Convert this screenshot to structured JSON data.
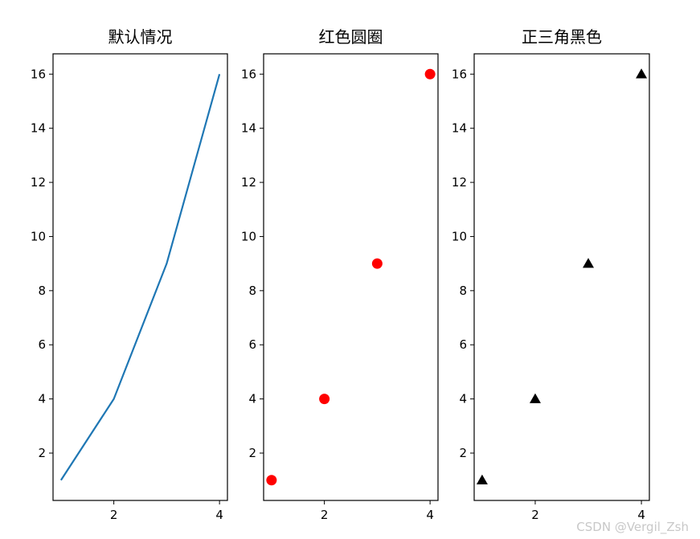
{
  "watermark": "CSDN @Vergil_Zsh",
  "chart_data": [
    {
      "type": "line",
      "title": "默认情况",
      "x": [
        1,
        2,
        3,
        4
      ],
      "y": [
        1,
        4,
        9,
        16
      ],
      "color": "#1f77b4",
      "xlim": [
        0.85,
        4.15
      ],
      "ylim": [
        0.25,
        16.75
      ],
      "xticks": [
        2,
        4
      ],
      "yticks": [
        2,
        4,
        6,
        8,
        10,
        12,
        14,
        16
      ],
      "grid": false
    },
    {
      "type": "scatter",
      "title": "红色圆圈",
      "x": [
        1,
        2,
        3,
        4
      ],
      "y": [
        1,
        4,
        9,
        16
      ],
      "color": "#ff0000",
      "marker": "circle",
      "xlim": [
        0.85,
        4.15
      ],
      "ylim": [
        0.25,
        16.75
      ],
      "xticks": [
        2,
        4
      ],
      "yticks": [
        2,
        4,
        6,
        8,
        10,
        12,
        14,
        16
      ],
      "grid": false
    },
    {
      "type": "scatter",
      "title": "正三角黑色",
      "x": [
        1,
        2,
        3,
        4
      ],
      "y": [
        1,
        4,
        9,
        16
      ],
      "color": "#000000",
      "marker": "triangle",
      "xlim": [
        0.85,
        4.15
      ],
      "ylim": [
        0.25,
        16.75
      ],
      "xticks": [
        2,
        4
      ],
      "yticks": [
        2,
        4,
        6,
        8,
        10,
        12,
        14,
        16
      ],
      "grid": false
    }
  ]
}
